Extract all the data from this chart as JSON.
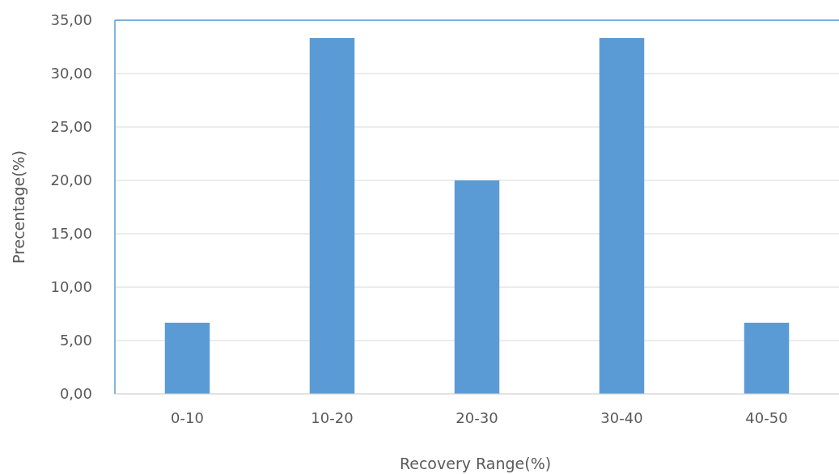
{
  "chart_data": {
    "type": "bar",
    "xlabel": "Recovery Range(%)",
    "ylabel": "Precentage(%)",
    "categories": [
      "0-10",
      "10-20",
      "20-30",
      "30-40",
      "40-50"
    ],
    "values": [
      6.67,
      33.33,
      20.0,
      33.33,
      6.67
    ],
    "color": "#5b9bd5",
    "ylim": [
      0,
      35
    ],
    "yticks": [
      {
        "value": 0,
        "label": "0,00"
      },
      {
        "value": 5,
        "label": "5,00"
      },
      {
        "value": 10,
        "label": "10,00"
      },
      {
        "value": 15,
        "label": "15,00"
      },
      {
        "value": 20,
        "label": "20,00"
      },
      {
        "value": 25,
        "label": "25,00"
      },
      {
        "value": 30,
        "label": "30,00"
      },
      {
        "value": 35,
        "label": "35,00"
      }
    ],
    "grid": "y"
  }
}
